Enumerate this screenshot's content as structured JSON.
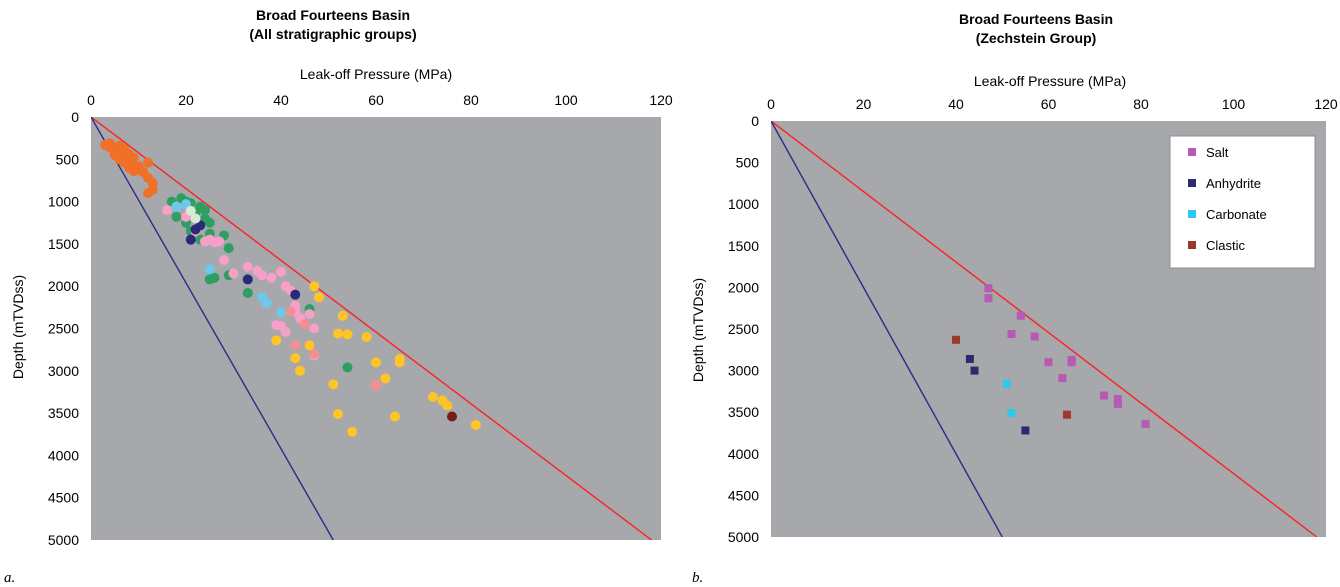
{
  "chart_data": [
    {
      "type": "scatter",
      "panel_label": "a.",
      "title": "Broad Fourteens Basin",
      "subtitle": "(All stratigraphic groups)",
      "xlabel": "Leak-off Pressure (MPa)",
      "ylabel": "Depth (mTVDss)",
      "xlim": [
        0,
        120
      ],
      "ylim": [
        0,
        5000
      ],
      "x_ticks": [
        "0",
        "20",
        "40",
        "60",
        "80",
        "100",
        "120"
      ],
      "y_ticks": [
        "0",
        "500",
        "1000",
        "1500",
        "2000",
        "2500",
        "3000",
        "3500",
        "4000",
        "4500",
        "5000"
      ],
      "x_axis_position": "top",
      "y_inverted": true,
      "grid": false,
      "plot_background": "#a6a8ab",
      "marker": "circle",
      "lines": [
        {
          "color": "#ff2020",
          "points": [
            [
              0,
              0
            ],
            [
              118,
              5000
            ]
          ]
        },
        {
          "color": "#2b2b86",
          "points": [
            [
              0,
              0
            ],
            [
              51,
              5000
            ]
          ]
        }
      ],
      "series": [
        {
          "color": "#f07028",
          "points": [
            [
              3,
              330
            ],
            [
              4,
              310
            ],
            [
              4,
              360
            ],
            [
              5,
              400
            ],
            [
              5,
              450
            ],
            [
              6,
              340
            ],
            [
              6,
              420
            ],
            [
              6,
              500
            ],
            [
              7,
              380
            ],
            [
              7,
              460
            ],
            [
              7,
              540
            ],
            [
              8,
              440
            ],
            [
              8,
              520
            ],
            [
              8,
              600
            ],
            [
              9,
              480
            ],
            [
              9,
              560
            ],
            [
              9,
              640
            ],
            [
              10,
              580
            ],
            [
              10,
              620
            ],
            [
              11,
              650
            ],
            [
              12,
              540
            ],
            [
              12,
              720
            ],
            [
              13,
              780
            ],
            [
              13,
              860
            ],
            [
              12,
              900
            ],
            [
              5,
              370
            ],
            [
              6,
              470
            ],
            [
              8,
              560
            ],
            [
              9,
              610
            ],
            [
              10,
              600
            ]
          ]
        },
        {
          "color": "#2e9e62",
          "points": [
            [
              17,
              1000
            ],
            [
              18,
              1180
            ],
            [
              19,
              960
            ],
            [
              20,
              1000
            ],
            [
              20,
              1250
            ],
            [
              21,
              1350
            ],
            [
              22,
              1130
            ],
            [
              23,
              1060
            ],
            [
              23,
              1450
            ],
            [
              24,
              1100
            ],
            [
              25,
              1250
            ],
            [
              25,
              1380
            ],
            [
              25,
              1920
            ],
            [
              26,
              1900
            ],
            [
              28,
              1400
            ],
            [
              29,
              1550
            ],
            [
              29,
              1870
            ],
            [
              33,
              2080
            ],
            [
              46,
              2270
            ],
            [
              54,
              2960
            ],
            [
              24,
              1200
            ],
            [
              21,
              1020
            ]
          ]
        },
        {
          "color": "#f6a0c8",
          "points": [
            [
              16,
              1100
            ],
            [
              18,
              1060
            ],
            [
              20,
              1180
            ],
            [
              22,
              1350
            ],
            [
              24,
              1470
            ],
            [
              25,
              1450
            ],
            [
              26,
              1480
            ],
            [
              27,
              1470
            ],
            [
              28,
              1690
            ],
            [
              30,
              1850
            ],
            [
              33,
              1770
            ],
            [
              35,
              1820
            ],
            [
              36,
              1870
            ],
            [
              38,
              1900
            ],
            [
              40,
              1830
            ],
            [
              41,
              2000
            ],
            [
              42,
              2050
            ],
            [
              43,
              2230
            ],
            [
              44,
              2380
            ],
            [
              45,
              2450
            ],
            [
              46,
              2330
            ],
            [
              47,
              2500
            ],
            [
              47,
              2820
            ],
            [
              40,
              2470
            ],
            [
              41,
              2540
            ],
            [
              39,
              2460
            ],
            [
              43,
              2300
            ]
          ]
        },
        {
          "color": "#f09090",
          "points": [
            [
              42,
              2300
            ],
            [
              43,
              2700
            ],
            [
              45,
              2450
            ],
            [
              47,
              2800
            ],
            [
              60,
              3160
            ],
            [
              60,
              3180
            ]
          ]
        },
        {
          "color": "#ffc425",
          "points": [
            [
              39,
              2640
            ],
            [
              43,
              2850
            ],
            [
              44,
              3000
            ],
            [
              46,
              2700
            ],
            [
              47,
              2000
            ],
            [
              48,
              2130
            ],
            [
              51,
              3160
            ],
            [
              52,
              3510
            ],
            [
              52,
              2560
            ],
            [
              53,
              2350
            ],
            [
              54,
              2570
            ],
            [
              55,
              3720
            ],
            [
              58,
              2600
            ],
            [
              60,
              2900
            ],
            [
              62,
              3090
            ],
            [
              64,
              3540
            ],
            [
              65,
              2860
            ],
            [
              65,
              2900
            ],
            [
              72,
              3310
            ],
            [
              74,
              3350
            ],
            [
              75,
              3410
            ],
            [
              81,
              3640
            ]
          ]
        },
        {
          "color": "#6ec8ec",
          "points": [
            [
              18,
              1060
            ],
            [
              20,
              1030
            ],
            [
              25,
              1800
            ],
            [
              36,
              2130
            ],
            [
              37,
              2200
            ],
            [
              40,
              2310
            ]
          ]
        },
        {
          "color": "#2a2a78",
          "points": [
            [
              22,
              1330
            ],
            [
              23,
              1280
            ],
            [
              21,
              1450
            ],
            [
              33,
              1920
            ],
            [
              43,
              2100
            ]
          ]
        },
        {
          "color": "#7a1a1a",
          "points": [
            [
              76,
              3540
            ]
          ]
        },
        {
          "color": "#d8ead6",
          "points": [
            [
              21,
              1110
            ],
            [
              22,
              1200
            ]
          ]
        }
      ]
    },
    {
      "type": "scatter",
      "panel_label": "b.",
      "title": "Broad Fourteens Basin",
      "subtitle": "(Zechstein Group)",
      "xlabel": "Leak-off Pressure (MPa)",
      "ylabel": "Depth (mTVDss)",
      "xlim": [
        0,
        120
      ],
      "ylim": [
        0,
        5000
      ],
      "x_ticks": [
        "0",
        "20",
        "40",
        "60",
        "80",
        "100",
        "120"
      ],
      "y_ticks": [
        "0",
        "500",
        "1000",
        "1500",
        "2000",
        "2500",
        "3000",
        "3500",
        "4000",
        "4500",
        "5000"
      ],
      "x_axis_position": "top",
      "y_inverted": true,
      "grid": false,
      "plot_background": "#a6a8ab",
      "marker": "square",
      "legend": "top-right",
      "lines": [
        {
          "color": "#ff2020",
          "points": [
            [
              0,
              0
            ],
            [
              118,
              5000
            ]
          ]
        },
        {
          "color": "#2b2b86",
          "points": [
            [
              0,
              0
            ],
            [
              50,
              5000
            ]
          ]
        }
      ],
      "series": [
        {
          "name": "Salt",
          "color": "#b65ab4",
          "points": [
            [
              47,
              2010
            ],
            [
              47,
              2130
            ],
            [
              52,
              2560
            ],
            [
              54,
              2340
            ],
            [
              57,
              2590
            ],
            [
              60,
              2900
            ],
            [
              63,
              3090
            ],
            [
              65,
              2870
            ],
            [
              65,
              2900
            ],
            [
              72,
              3300
            ],
            [
              75,
              3340
            ],
            [
              75,
              3400
            ],
            [
              81,
              3640
            ]
          ]
        },
        {
          "name": "Anhydrite",
          "color": "#2a2a6e",
          "points": [
            [
              43,
              2860
            ],
            [
              44,
              3000
            ],
            [
              55,
              3720
            ]
          ]
        },
        {
          "name": "Carbonate",
          "color": "#2ec7ee",
          "points": [
            [
              51,
              3160
            ],
            [
              52,
              3510
            ]
          ]
        },
        {
          "name": "Clastic",
          "color": "#9a3a2a",
          "points": [
            [
              40,
              2630
            ],
            [
              64,
              3530
            ]
          ]
        }
      ]
    }
  ]
}
